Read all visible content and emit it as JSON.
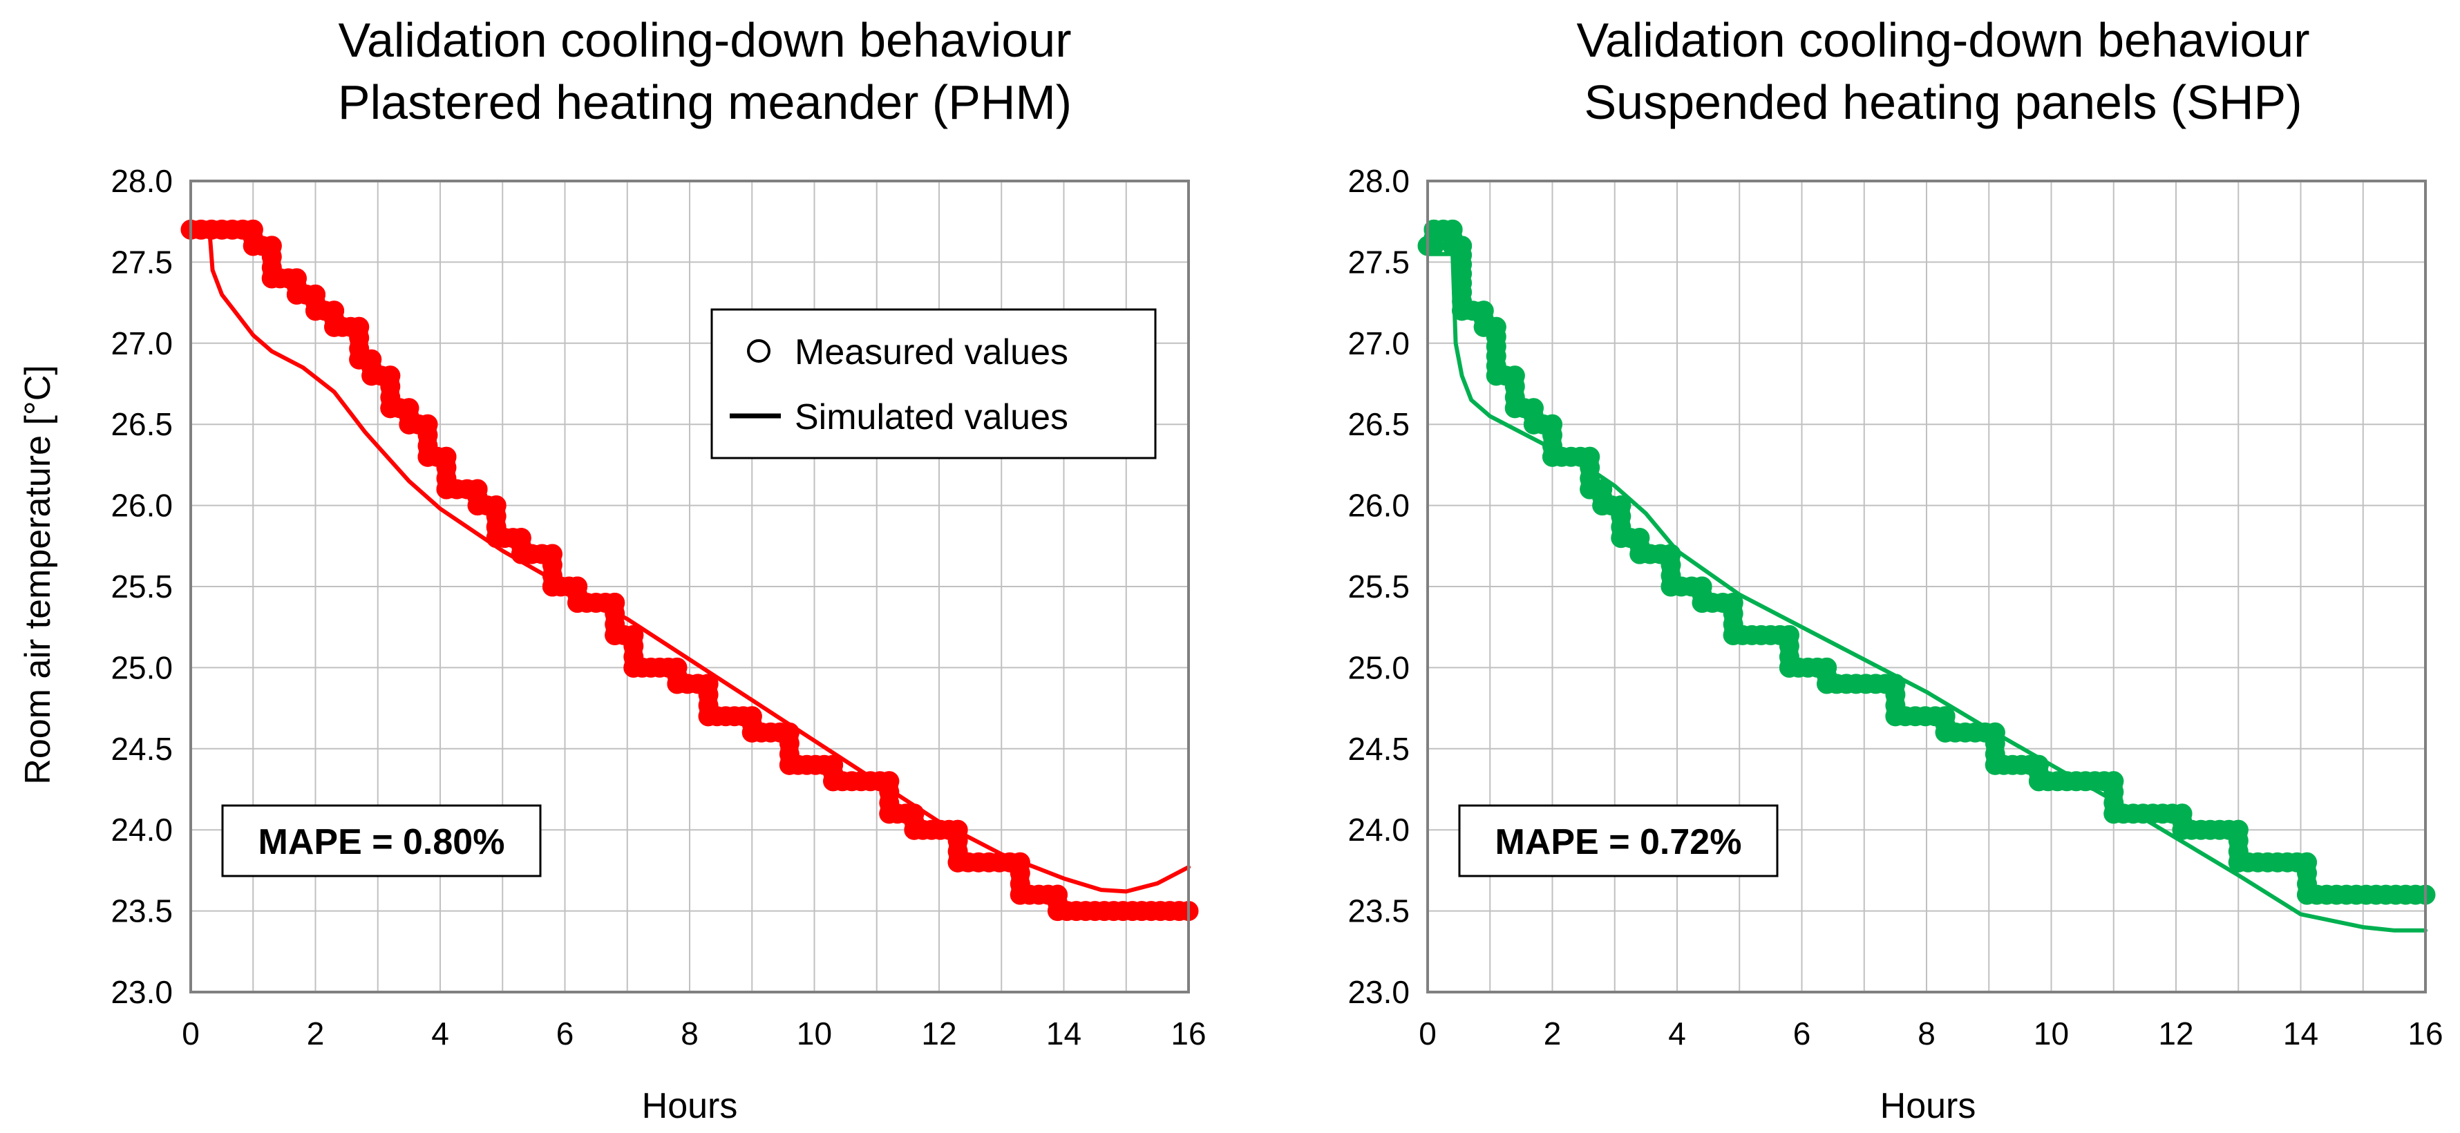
{
  "chart_data": [
    {
      "type": "line",
      "title": [
        "Validation cooling-down behaviour",
        "Plastered heating meander (PHM)"
      ],
      "xlabel": "Hours",
      "ylabel": "Room air temperature [°C]",
      "xlim": [
        0,
        16
      ],
      "ylim": [
        23.0,
        28.0
      ],
      "xticks": [
        0,
        2,
        4,
        6,
        8,
        10,
        12,
        14,
        16
      ],
      "xtick_labels": [
        "0",
        "2",
        "4",
        "6",
        "8",
        "10",
        "12",
        "14",
        "16"
      ],
      "yticks": [
        23.0,
        23.5,
        24.0,
        24.5,
        25.0,
        25.5,
        26.0,
        26.5,
        27.0,
        27.5,
        28.0
      ],
      "ytick_labels": [
        "23.0",
        "23.5",
        "24.0",
        "24.5",
        "25.0",
        "25.5",
        "26.0",
        "26.5",
        "27.0",
        "27.5",
        "28.0"
      ],
      "grid": true,
      "color": "#ff0000",
      "legend": {
        "position": "top-right",
        "entries": [
          "Measured values",
          "Simulated values"
        ]
      },
      "annotation": "MAPE = 0.80%",
      "series": [
        {
          "name": "Measured values",
          "style": "circle-markers",
          "x": [
            0,
            1.0,
            1.0,
            1.3,
            1.3,
            1.7,
            1.7,
            2.0,
            2.0,
            2.3,
            2.3,
            2.7,
            2.7,
            2.9,
            2.9,
            3.2,
            3.2,
            3.5,
            3.5,
            3.8,
            3.8,
            4.1,
            4.1,
            4.6,
            4.6,
            4.9,
            4.9,
            5.3,
            5.3,
            5.8,
            5.8,
            6.2,
            6.2,
            6.8,
            6.8,
            7.1,
            7.1,
            7.8,
            7.8,
            8.3,
            8.3,
            9.0,
            9.0,
            9.6,
            9.6,
            10.3,
            10.3,
            11.2,
            11.2,
            11.6,
            11.6,
            12.3,
            12.3,
            13.3,
            13.3,
            13.9,
            13.9,
            16.0
          ],
          "y": [
            27.7,
            27.7,
            27.6,
            27.6,
            27.4,
            27.4,
            27.3,
            27.3,
            27.2,
            27.2,
            27.1,
            27.1,
            26.9,
            26.9,
            26.8,
            26.8,
            26.6,
            26.6,
            26.5,
            26.5,
            26.3,
            26.3,
            26.1,
            26.1,
            26.0,
            26.0,
            25.8,
            25.8,
            25.7,
            25.7,
            25.5,
            25.5,
            25.4,
            25.4,
            25.2,
            25.2,
            25.0,
            25.0,
            24.9,
            24.9,
            24.7,
            24.7,
            24.6,
            24.6,
            24.4,
            24.4,
            24.3,
            24.3,
            24.1,
            24.1,
            24.0,
            24.0,
            23.8,
            23.8,
            23.6,
            23.6,
            23.5,
            23.5
          ]
        },
        {
          "name": "Simulated values",
          "style": "line",
          "x": [
            0,
            0.3,
            0.35,
            0.5,
            0.7,
            1.0,
            1.3,
            1.8,
            2.3,
            2.8,
            3.5,
            4.0,
            4.5,
            5.0,
            6.0,
            7.0,
            8.0,
            9.0,
            10.0,
            11.0,
            12.0,
            13.0,
            14.0,
            14.6,
            15.0,
            15.5,
            16.0
          ],
          "y": [
            27.7,
            27.7,
            27.45,
            27.3,
            27.2,
            27.05,
            26.95,
            26.85,
            26.7,
            26.45,
            26.15,
            25.98,
            25.85,
            25.72,
            25.5,
            25.3,
            25.05,
            24.8,
            24.55,
            24.3,
            24.05,
            23.85,
            23.7,
            23.63,
            23.62,
            23.67,
            23.77
          ]
        }
      ]
    },
    {
      "type": "line",
      "title": [
        "Validation cooling-down behaviour",
        "Suspended heating panels (SHP)"
      ],
      "xlabel": "Hours",
      "ylabel": "",
      "xlim": [
        0,
        16
      ],
      "ylim": [
        23.0,
        28.0
      ],
      "xticks": [
        0,
        2,
        4,
        6,
        8,
        10,
        12,
        14,
        16
      ],
      "xtick_labels": [
        "0",
        "2",
        "4",
        "6",
        "8",
        "10",
        "12",
        "14",
        "16"
      ],
      "yticks": [
        23.0,
        23.5,
        24.0,
        24.5,
        25.0,
        25.5,
        26.0,
        26.5,
        27.0,
        27.5,
        28.0
      ],
      "ytick_labels": [
        "23.0",
        "23.5",
        "24.0",
        "24.5",
        "25.0",
        "25.5",
        "26.0",
        "26.5",
        "27.0",
        "27.5",
        "28.0"
      ],
      "grid": true,
      "color": "#00b050",
      "annotation": "MAPE = 0.72%",
      "series": [
        {
          "name": "Measured values",
          "style": "circle-markers",
          "x": [
            0,
            0.1,
            0.1,
            0.4,
            0.4,
            0.55,
            0.55,
            0.9,
            0.9,
            1.1,
            1.1,
            1.4,
            1.4,
            1.7,
            1.7,
            2.0,
            2.0,
            2.6,
            2.6,
            2.8,
            2.8,
            3.1,
            3.1,
            3.4,
            3.4,
            3.9,
            3.9,
            4.4,
            4.4,
            4.9,
            4.9,
            5.8,
            5.8,
            6.4,
            6.4,
            7.5,
            7.5,
            8.3,
            8.3,
            9.1,
            9.1,
            9.8,
            9.8,
            11.0,
            11.0,
            12.1,
            12.1,
            13.0,
            13.0,
            14.1,
            14.1,
            16.0
          ],
          "y": [
            27.6,
            27.6,
            27.7,
            27.7,
            27.6,
            27.6,
            27.2,
            27.2,
            27.1,
            27.1,
            26.8,
            26.8,
            26.6,
            26.6,
            26.5,
            26.5,
            26.3,
            26.3,
            26.1,
            26.1,
            26.0,
            26.0,
            25.8,
            25.8,
            25.7,
            25.7,
            25.5,
            25.5,
            25.4,
            25.4,
            25.2,
            25.2,
            25.0,
            25.0,
            24.9,
            24.9,
            24.7,
            24.7,
            24.6,
            24.6,
            24.4,
            24.4,
            24.3,
            24.3,
            24.1,
            24.1,
            24.0,
            24.0,
            23.8,
            23.8,
            23.6,
            23.6
          ]
        },
        {
          "name": "Simulated values",
          "style": "line",
          "x": [
            0,
            0.4,
            0.45,
            0.55,
            0.7,
            1.0,
            1.5,
            2.0,
            2.5,
            3.0,
            3.5,
            4.0,
            5.0,
            6.0,
            7.0,
            8.0,
            9.0,
            10.0,
            11.0,
            12.0,
            13.0,
            14.0,
            15.0,
            15.5,
            16.0
          ],
          "y": [
            27.55,
            27.55,
            27.0,
            26.8,
            26.65,
            26.55,
            26.45,
            26.35,
            26.25,
            26.12,
            25.95,
            25.72,
            25.45,
            25.25,
            25.05,
            24.85,
            24.62,
            24.4,
            24.18,
            23.95,
            23.72,
            23.48,
            23.4,
            23.38,
            23.38
          ]
        }
      ]
    }
  ]
}
